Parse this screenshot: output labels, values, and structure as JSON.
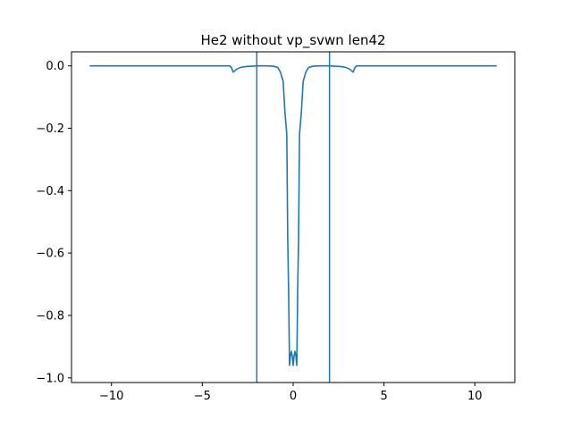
{
  "chart_data": {
    "type": "line",
    "title": "He2 without vp_svwn len42",
    "xlabel": "",
    "ylabel": "",
    "xlim": [
      -12.2,
      12.2
    ],
    "ylim": [
      -1.015,
      0.045
    ],
    "grid": false,
    "legend": "none",
    "colors": {
      "line": "#1f77b4",
      "axes": "#000000",
      "background": "#ffffff"
    },
    "xticks": [
      {
        "value": -10,
        "label": "−10"
      },
      {
        "value": -5,
        "label": "−5"
      },
      {
        "value": 0,
        "label": "0"
      },
      {
        "value": 5,
        "label": "5"
      },
      {
        "value": 10,
        "label": "10"
      }
    ],
    "yticks": [
      {
        "value": 0.0,
        "label": "0.0"
      },
      {
        "value": -0.2,
        "label": "−0.2"
      },
      {
        "value": -0.4,
        "label": "−0.4"
      },
      {
        "value": -0.6,
        "label": "−0.6"
      },
      {
        "value": -0.8,
        "label": "−0.8"
      },
      {
        "value": -1.0,
        "label": "−1.0"
      }
    ],
    "vlines": [
      -2.0,
      2.0
    ],
    "series": [
      {
        "x": [
          -11.2,
          -8.0,
          -5.0,
          -4.0,
          -3.5,
          -3.4,
          -3.3,
          -3.1,
          -2.9,
          -2.6,
          -2.3,
          -2.0,
          -1.7,
          -1.4,
          -1.1,
          -0.85,
          -0.7,
          -0.55,
          -0.45,
          -0.35,
          -0.3,
          -0.25,
          -0.2,
          -0.15,
          -0.1,
          -0.05,
          0.0,
          0.05,
          0.1,
          0.15,
          0.2,
          0.25,
          0.3,
          0.35,
          0.45,
          0.55,
          0.7,
          0.85,
          1.1,
          1.4,
          1.7,
          2.0,
          2.3,
          2.6,
          2.9,
          3.1,
          3.3,
          3.4,
          3.5,
          4.0,
          5.0,
          8.0,
          11.2
        ],
        "y": [
          0.0,
          0.0,
          0.0,
          0.0,
          0.0,
          -0.005,
          -0.02,
          -0.01,
          -0.005,
          -0.002,
          -0.001,
          0.0,
          0.0,
          0.0,
          -0.001,
          -0.005,
          -0.02,
          -0.05,
          -0.15,
          -0.22,
          -0.55,
          -0.72,
          -0.96,
          -0.93,
          -0.915,
          -0.93,
          -0.96,
          -0.93,
          -0.915,
          -0.93,
          -0.96,
          -0.72,
          -0.55,
          -0.22,
          -0.15,
          -0.05,
          -0.02,
          -0.005,
          -0.001,
          0.0,
          0.0,
          0.0,
          -0.001,
          -0.002,
          -0.005,
          -0.01,
          -0.02,
          -0.005,
          0.0,
          0.0,
          0.0,
          0.0,
          0.0
        ]
      }
    ]
  }
}
